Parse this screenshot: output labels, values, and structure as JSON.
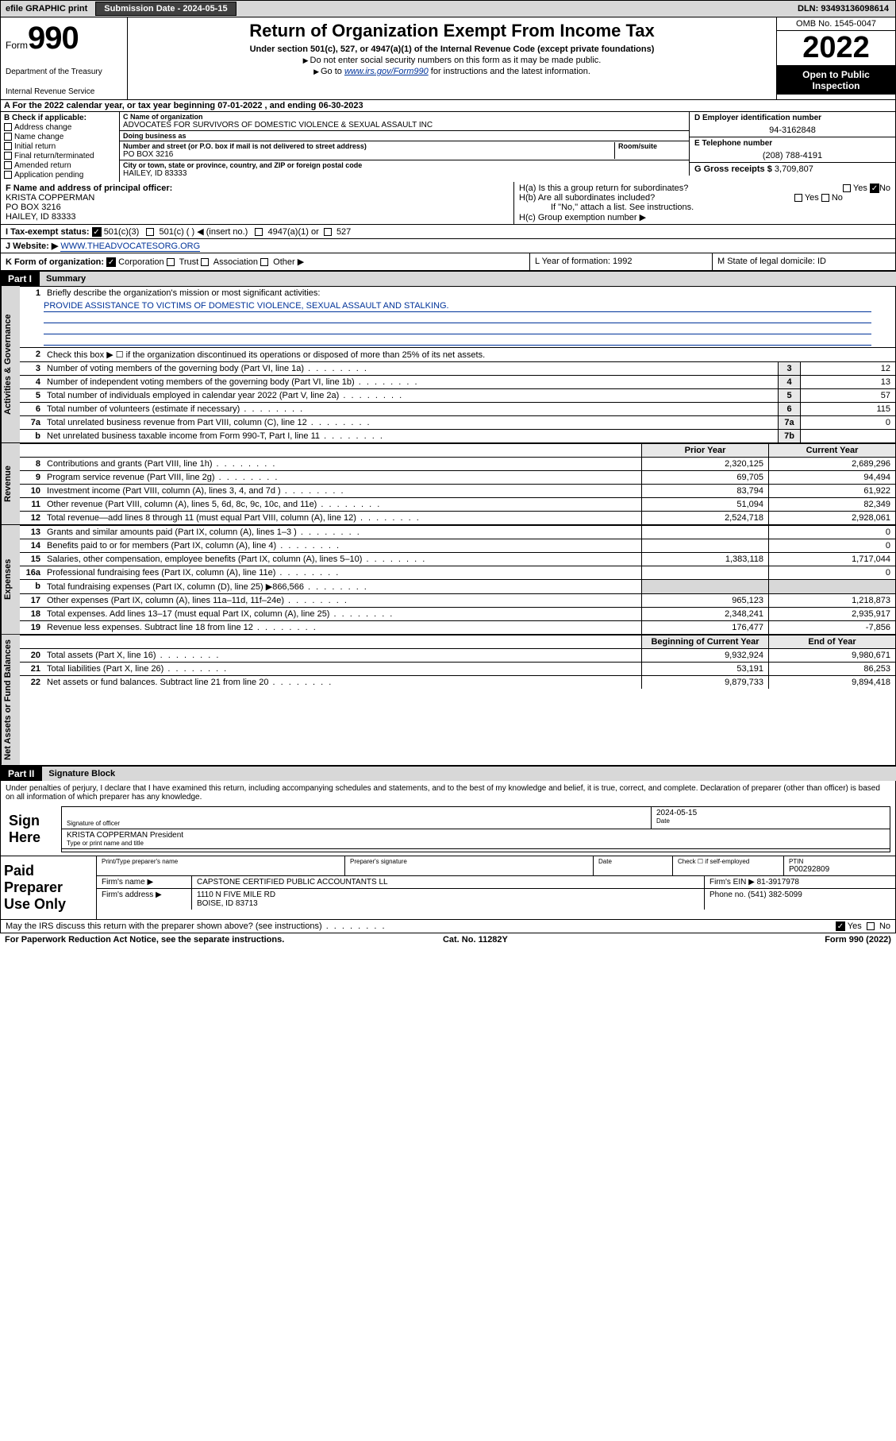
{
  "topbar": {
    "efile": "efile GRAPHIC print",
    "submission_label": "Submission Date - 2024-05-15",
    "dln": "DLN: 93493136098614"
  },
  "header": {
    "form_prefix": "Form",
    "form_number": "990",
    "dept": "Department of the Treasury",
    "irs": "Internal Revenue Service",
    "title": "Return of Organization Exempt From Income Tax",
    "sub": "Under section 501(c), 527, or 4947(a)(1) of the Internal Revenue Code (except private foundations)",
    "note1": "Do not enter social security numbers on this form as it may be made public.",
    "note2_pre": "Go to ",
    "note2_link": "www.irs.gov/Form990",
    "note2_post": " for instructions and the latest information.",
    "omb": "OMB No. 1545-0047",
    "year": "2022",
    "open": "Open to Public Inspection"
  },
  "row_a": "A For the 2022 calendar year, or tax year beginning 07-01-2022   , and ending 06-30-2023",
  "col_b": {
    "title": "B Check if applicable:",
    "items": [
      "Address change",
      "Name change",
      "Initial return",
      "Final return/terminated",
      "Amended return",
      "Application pending"
    ]
  },
  "col_c": {
    "name_lbl": "C Name of organization",
    "name": "ADVOCATES FOR SURVIVORS OF DOMESTIC VIOLENCE & SEXUAL ASSAULT INC",
    "dba_lbl": "Doing business as",
    "dba": "",
    "addr_lbl": "Number and street (or P.O. box if mail is not delivered to street address)",
    "room_lbl": "Room/suite",
    "addr": "PO BOX 3216",
    "city_lbl": "City or town, state or province, country, and ZIP or foreign postal code",
    "city": "HAILEY, ID  83333"
  },
  "col_d": {
    "ein_lbl": "D Employer identification number",
    "ein": "94-3162848",
    "phone_lbl": "E Telephone number",
    "phone": "(208) 788-4191",
    "gross_lbl": "G Gross receipts $",
    "gross": "3,709,807"
  },
  "row_f": {
    "lbl": "F Name and address of principal officer:",
    "name": "KRISTA COPPERMAN",
    "addr": "PO BOX 3216",
    "city": "HAILEY, ID  83333"
  },
  "row_h": {
    "ha": "H(a) Is this a group return for subordinates?",
    "ha_yes": "Yes",
    "ha_no": "No",
    "hb": "H(b) Are all subordinates included?",
    "hb_note": "If \"No,\" attach a list. See instructions.",
    "hc": "H(c) Group exemption number"
  },
  "row_i": {
    "lbl": "I   Tax-exempt status:",
    "o1": "501(c)(3)",
    "o2": "501(c) (  ) ◀ (insert no.)",
    "o3": "4947(a)(1) or",
    "o4": "527"
  },
  "row_j": {
    "lbl": "J   Website: ▶",
    "val": "WWW.THEADVOCATESORG.ORG"
  },
  "row_k": {
    "left": "K Form of organization:",
    "opts": [
      "Corporation",
      "Trust",
      "Association",
      "Other ▶"
    ],
    "l": "L Year of formation: 1992",
    "m": "M State of legal domicile: ID"
  },
  "part1": {
    "hdr": "Part I",
    "title": "Summary",
    "sec_gov": "Activities & Governance",
    "sec_rev": "Revenue",
    "sec_exp": "Expenses",
    "sec_net": "Net Assets or Fund Balances",
    "line1_lbl": "Briefly describe the organization's mission or most significant activities:",
    "line1_val": "PROVIDE ASSISTANCE TO VICTIMS OF DOMESTIC VIOLENCE, SEXUAL ASSAULT AND STALKING.",
    "line2": "Check this box ▶ ☐  if the organization discontinued its operations or disposed of more than 25% of its net assets.",
    "lines_gov": [
      {
        "n": "3",
        "t": "Number of voting members of the governing body (Part VI, line 1a)",
        "box": "3",
        "v": "12"
      },
      {
        "n": "4",
        "t": "Number of independent voting members of the governing body (Part VI, line 1b)",
        "box": "4",
        "v": "13"
      },
      {
        "n": "5",
        "t": "Total number of individuals employed in calendar year 2022 (Part V, line 2a)",
        "box": "5",
        "v": "57"
      },
      {
        "n": "6",
        "t": "Total number of volunteers (estimate if necessary)",
        "box": "6",
        "v": "115"
      },
      {
        "n": "7a",
        "t": "Total unrelated business revenue from Part VIII, column (C), line 12",
        "box": "7a",
        "v": "0"
      },
      {
        "n": "b",
        "t": "Net unrelated business taxable income from Form 990-T, Part I, line 11",
        "box": "7b",
        "v": ""
      }
    ],
    "col_hdr_prior": "Prior Year",
    "col_hdr_curr": "Current Year",
    "lines_rev": [
      {
        "n": "8",
        "t": "Contributions and grants (Part VIII, line 1h)",
        "p": "2,320,125",
        "c": "2,689,296"
      },
      {
        "n": "9",
        "t": "Program service revenue (Part VIII, line 2g)",
        "p": "69,705",
        "c": "94,494"
      },
      {
        "n": "10",
        "t": "Investment income (Part VIII, column (A), lines 3, 4, and 7d )",
        "p": "83,794",
        "c": "61,922"
      },
      {
        "n": "11",
        "t": "Other revenue (Part VIII, column (A), lines 5, 6d, 8c, 9c, 10c, and 11e)",
        "p": "51,094",
        "c": "82,349"
      },
      {
        "n": "12",
        "t": "Total revenue—add lines 8 through 11 (must equal Part VIII, column (A), line 12)",
        "p": "2,524,718",
        "c": "2,928,061"
      }
    ],
    "lines_exp": [
      {
        "n": "13",
        "t": "Grants and similar amounts paid (Part IX, column (A), lines 1–3 )",
        "p": "",
        "c": "0"
      },
      {
        "n": "14",
        "t": "Benefits paid to or for members (Part IX, column (A), line 4)",
        "p": "",
        "c": "0"
      },
      {
        "n": "15",
        "t": "Salaries, other compensation, employee benefits (Part IX, column (A), lines 5–10)",
        "p": "1,383,118",
        "c": "1,717,044"
      },
      {
        "n": "16a",
        "t": "Professional fundraising fees (Part IX, column (A), line 11e)",
        "p": "",
        "c": "0"
      },
      {
        "n": "b",
        "t": "Total fundraising expenses (Part IX, column (D), line 25) ▶866,566",
        "p": "shade",
        "c": "shade"
      },
      {
        "n": "17",
        "t": "Other expenses (Part IX, column (A), lines 11a–11d, 11f–24e)",
        "p": "965,123",
        "c": "1,218,873"
      },
      {
        "n": "18",
        "t": "Total expenses. Add lines 13–17 (must equal Part IX, column (A), line 25)",
        "p": "2,348,241",
        "c": "2,935,917"
      },
      {
        "n": "19",
        "t": "Revenue less expenses. Subtract line 18 from line 12",
        "p": "176,477",
        "c": "-7,856"
      }
    ],
    "col_hdr_beg": "Beginning of Current Year",
    "col_hdr_end": "End of Year",
    "lines_net": [
      {
        "n": "20",
        "t": "Total assets (Part X, line 16)",
        "p": "9,932,924",
        "c": "9,980,671"
      },
      {
        "n": "21",
        "t": "Total liabilities (Part X, line 26)",
        "p": "53,191",
        "c": "86,253"
      },
      {
        "n": "22",
        "t": "Net assets or fund balances. Subtract line 21 from line 20",
        "p": "9,879,733",
        "c": "9,894,418"
      }
    ]
  },
  "part2": {
    "hdr": "Part II",
    "title": "Signature Block",
    "decl": "Under penalties of perjury, I declare that I have examined this return, including accompanying schedules and statements, and to the best of my knowledge and belief, it is true, correct, and complete. Declaration of preparer (other than officer) is based on all information of which preparer has any knowledge.",
    "sign_here": "Sign Here",
    "sig_lbl": "Signature of officer",
    "date_lbl": "Date",
    "date_val": "2024-05-15",
    "name_title": "KRISTA COPPERMAN  President",
    "name_lbl": "Type or print name and title",
    "paid": "Paid Preparer Use Only",
    "prep_name_lbl": "Print/Type preparer's name",
    "prep_sig_lbl": "Preparer's signature",
    "prep_date_lbl": "Date",
    "prep_check_lbl": "Check ☐ if self-employed",
    "ptin_lbl": "PTIN",
    "ptin": "P00292809",
    "firm_name_lbl": "Firm's name   ▶",
    "firm_name": "CAPSTONE CERTIFIED PUBLIC ACCOUNTANTS LL",
    "firm_ein_lbl": "Firm's EIN ▶",
    "firm_ein": "81-3917978",
    "firm_addr_lbl": "Firm's address ▶",
    "firm_addr": "1110 N FIVE MILE RD",
    "firm_city": "BOISE, ID  83713",
    "firm_phone_lbl": "Phone no.",
    "firm_phone": "(541) 382-5099",
    "discuss": "May the IRS discuss this return with the preparer shown above? (see instructions)",
    "yes": "Yes",
    "no": "No"
  },
  "footer": {
    "pra": "For Paperwork Reduction Act Notice, see the separate instructions.",
    "cat": "Cat. No. 11282Y",
    "form": "Form 990 (2022)"
  }
}
